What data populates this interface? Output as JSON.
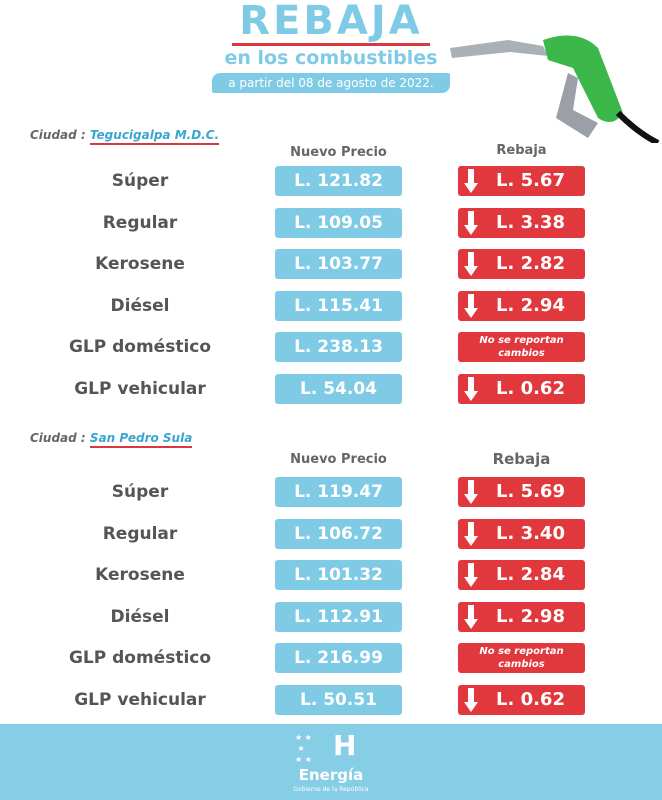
{
  "header": {
    "title": "REBAJA",
    "subtitle": "en los combustibles",
    "date": "a partir del 08 de agosto de 2022."
  },
  "columns": {
    "new_price": "Nuevo Precio",
    "discount": "Rebaja"
  },
  "sections": [
    {
      "city_label": "Ciudad :",
      "city": "Tegucigalpa M.D.C.",
      "rows": [
        {
          "fuel": "Súper",
          "price": "L. 121.82",
          "discount": "L. 5.67"
        },
        {
          "fuel": "Regular",
          "price": "L. 109.05",
          "discount": "L. 3.38"
        },
        {
          "fuel": "Kerosene",
          "price": "L. 103.77",
          "discount": "L. 2.82"
        },
        {
          "fuel": "Diésel",
          "price": "L. 115.41",
          "discount": "L. 2.94"
        },
        {
          "fuel": "GLP doméstico",
          "price": "L. 238.13",
          "discount": "No se reportan cambios"
        },
        {
          "fuel": "GLP vehicular",
          "price": "L. 54.04",
          "discount": "L. 0.62"
        }
      ]
    },
    {
      "city_label": "Ciudad :",
      "city": "San Pedro Sula",
      "rows": [
        {
          "fuel": "Súper",
          "price": "L. 119.47",
          "discount": "L. 5.69"
        },
        {
          "fuel": "Regular",
          "price": "L. 106.72",
          "discount": "L. 3.40"
        },
        {
          "fuel": "Kerosene",
          "price": "L. 101.32",
          "discount": "L. 2.84"
        },
        {
          "fuel": "Diésel",
          "price": "L. 112.91",
          "discount": "L. 2.98"
        },
        {
          "fuel": "GLP doméstico",
          "price": "L. 216.99",
          "discount": "No se reportan cambios"
        },
        {
          "fuel": "GLP vehicular",
          "price": "L. 50.51",
          "discount": "L. 0.62"
        }
      ]
    }
  ],
  "footer": {
    "logo_letter": "H",
    "name": "Energía",
    "government": "Gobierno de la República"
  },
  "colors": {
    "blue": "#7fcbe5",
    "red": "#e0383d",
    "green": "#3cb84a"
  }
}
